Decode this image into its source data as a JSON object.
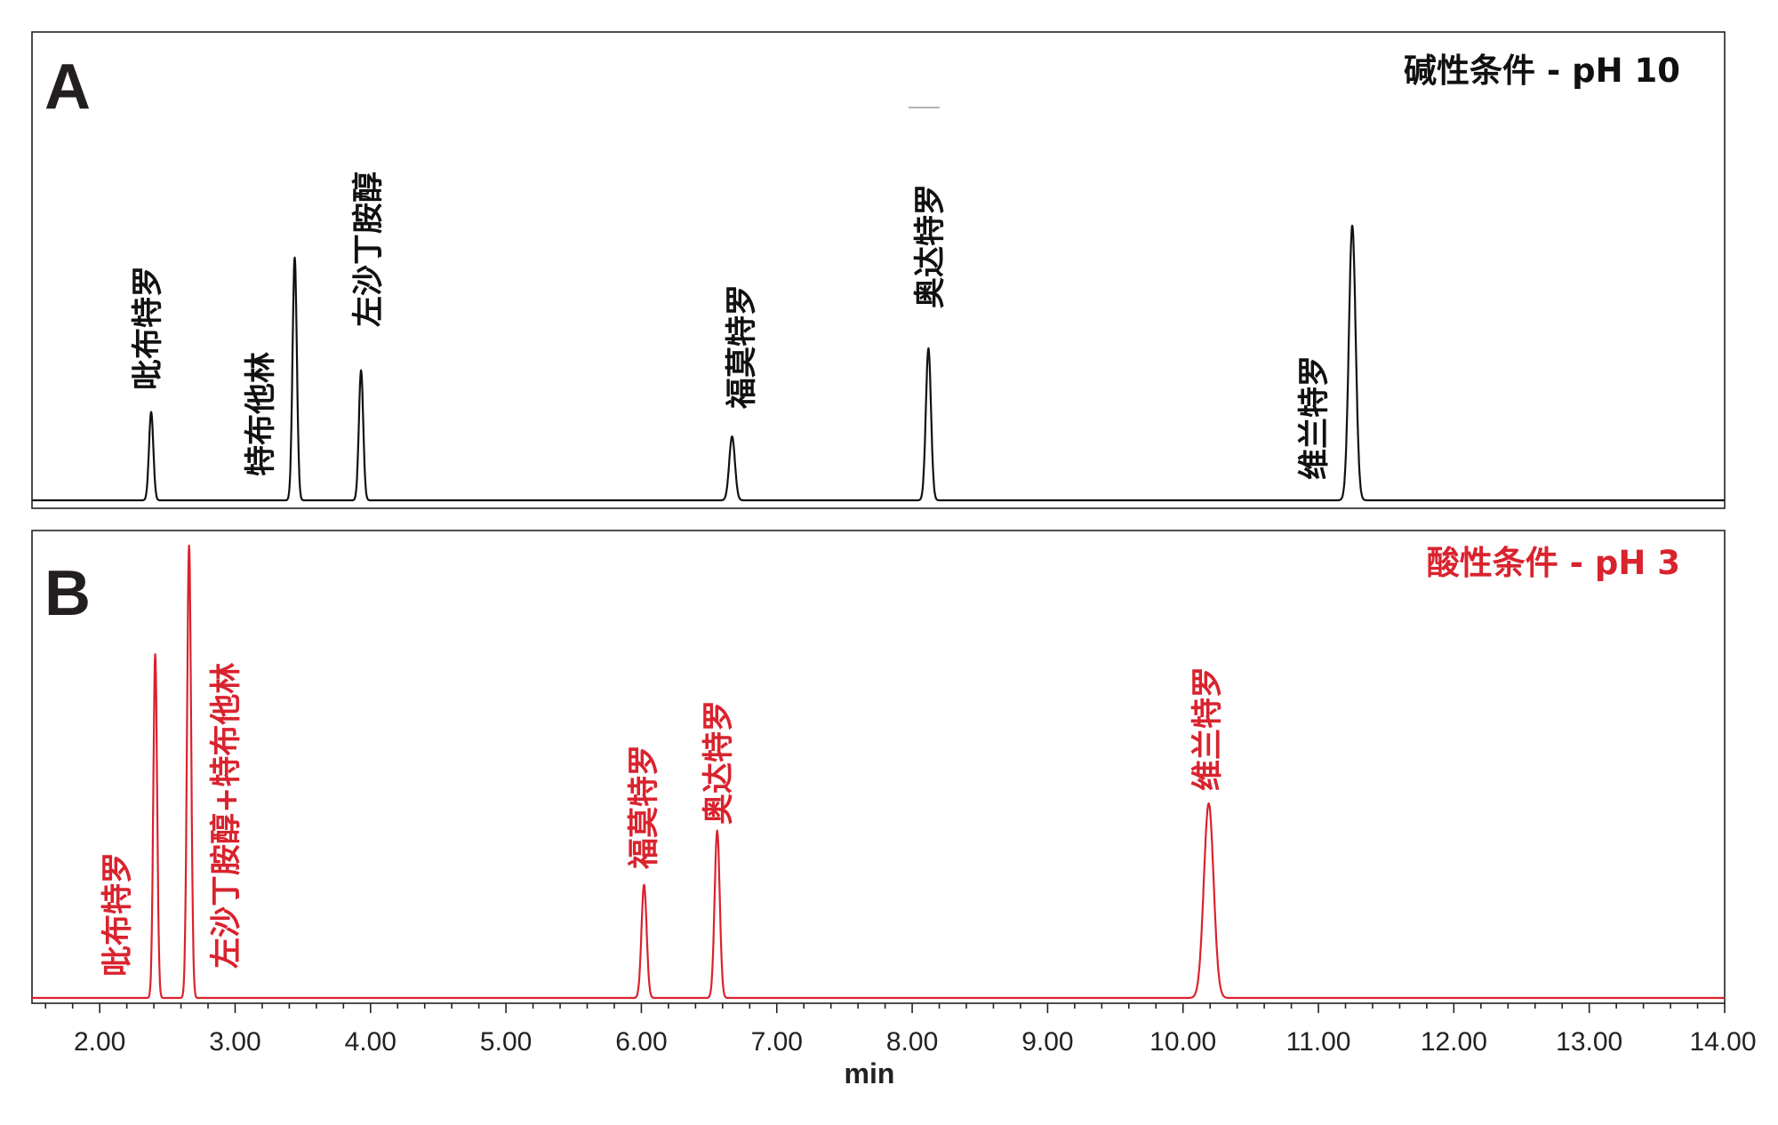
{
  "chart_data": {
    "type": "line",
    "xlabel": "min",
    "xlim": [
      1.5,
      14.0
    ],
    "x_ticks": [
      "2.00",
      "3.00",
      "4.00",
      "5.00",
      "6.00",
      "7.00",
      "8.00",
      "9.00",
      "10.00",
      "11.00",
      "12.00",
      "13.00",
      "14.00"
    ],
    "panels": [
      {
        "letter": "A",
        "condition": "碱性条件 - pH 10",
        "color": "#111111",
        "peaks": [
          {
            "name": "吡布特罗",
            "rt": 2.38,
            "height": 0.36,
            "width": 0.016
          },
          {
            "name": "特布他林",
            "rt": 3.44,
            "height": 0.99,
            "width": 0.016
          },
          {
            "name": "左沙丁胺醇",
            "rt": 3.93,
            "height": 0.53,
            "width": 0.016
          },
          {
            "name": "福莫特罗",
            "rt": 6.67,
            "height": 0.26,
            "width": 0.021
          },
          {
            "name": "奥达特罗",
            "rt": 8.12,
            "height": 0.62,
            "width": 0.019
          },
          {
            "name": "维兰特罗",
            "rt": 11.25,
            "height": 1.12,
            "width": 0.025
          }
        ],
        "labels": [
          "吡布特罗",
          "特布他林",
          "左沙丁胺醇",
          "福莫特罗",
          "奥达特罗",
          "维兰特罗"
        ]
      },
      {
        "letter": "B",
        "condition": "酸性条件 - pH 3",
        "color": "#d9232e",
        "peaks": [
          {
            "name": "吡布特罗",
            "rt": 2.41,
            "height": 0.76,
            "width": 0.014
          },
          {
            "name": "左沙丁胺醇+特布他林",
            "rt": 2.66,
            "height": 1.0,
            "width": 0.015
          },
          {
            "name": "福莫特罗",
            "rt": 6.02,
            "height": 0.25,
            "width": 0.019
          },
          {
            "name": "奥达特罗",
            "rt": 6.56,
            "height": 0.37,
            "width": 0.019
          },
          {
            "name": "维兰特罗",
            "rt": 10.19,
            "height": 0.43,
            "width": 0.036
          }
        ],
        "labels": [
          "吡布特罗",
          "左沙丁胺醇+特布他林",
          "福莫特罗",
          "奥达特罗",
          "维兰特罗"
        ]
      }
    ]
  }
}
